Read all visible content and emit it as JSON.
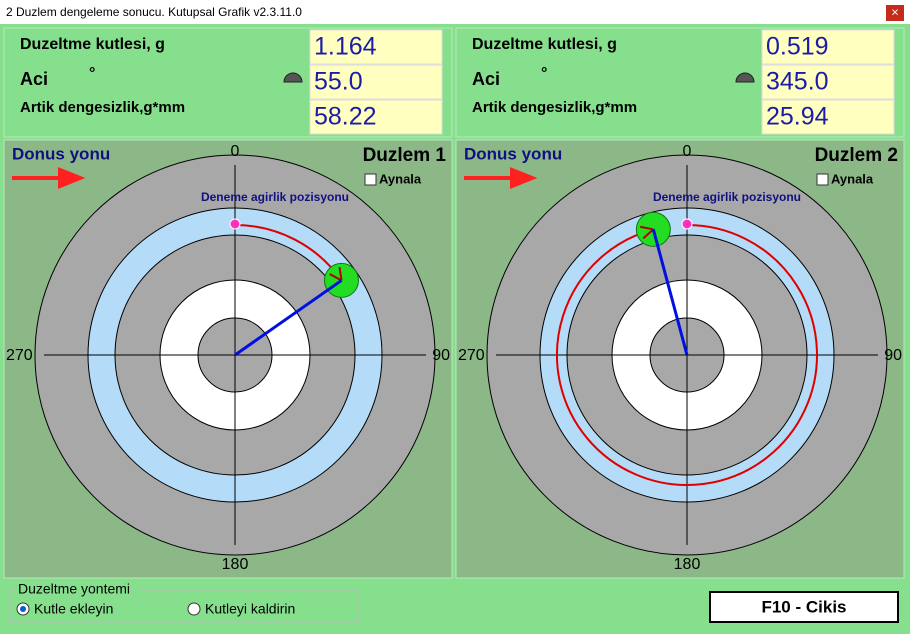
{
  "window": {
    "title": "2 Duzlem dengeleme sonucu. Kutupsal Grafik v2.3.11.0",
    "close": "×"
  },
  "planes": [
    {
      "mass_label": "Duzeltme kutlesi, g",
      "mass": "1.164",
      "angle_label": "Aci",
      "degree": "°",
      "angle": "55.0",
      "residual_label": "Artik dengesizlik,g*mm",
      "residual": "58.22",
      "direction": "Donus yonu",
      "plane": "Duzlem 1",
      "mirror": "Aynala",
      "trial": "Deneme agirlik pozisyonu",
      "axis": {
        "top": "0",
        "right": "90",
        "bottom": "180",
        "left": "270"
      }
    },
    {
      "mass_label": "Duzeltme kutlesi, g",
      "mass": "0.519",
      "angle_label": "Aci",
      "degree": "°",
      "angle": "345.0",
      "residual_label": "Artik dengesizlik,g*mm",
      "residual": "25.94",
      "direction": "Donus yonu",
      "plane": "Duzlem 2",
      "mirror": "Aynala",
      "trial": "Deneme agirlik pozisyonu",
      "axis": {
        "top": "0",
        "right": "90",
        "bottom": "180",
        "left": "270"
      }
    }
  ],
  "method": {
    "title": "Duzeltme yontemi",
    "options": [
      "Kutle ekleyin",
      "Kutleyi kaldirin"
    ]
  },
  "exit": "F10 - Cikis"
}
